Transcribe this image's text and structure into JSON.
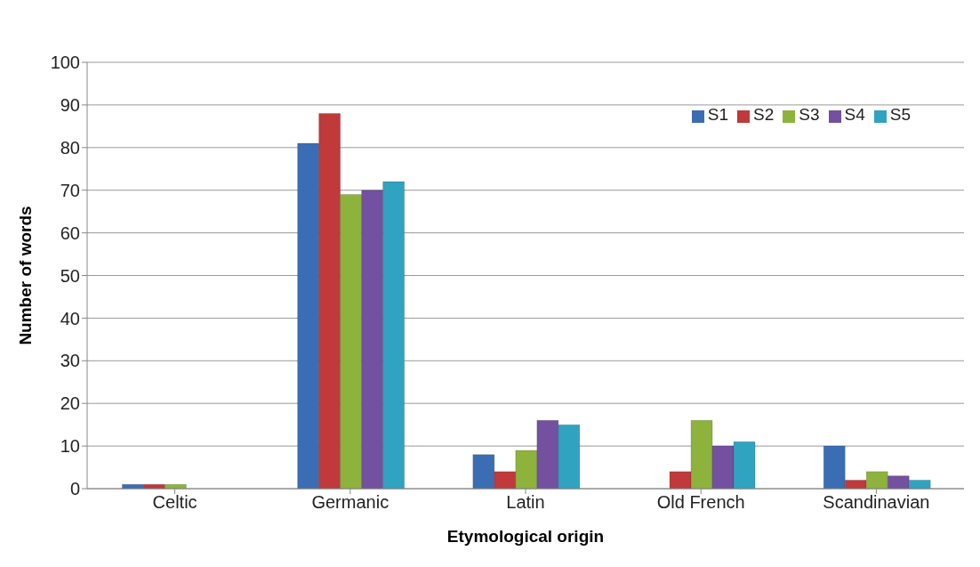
{
  "chart_data": {
    "type": "bar",
    "xlabel": "Etymological origin",
    "ylabel": "Number of words",
    "categories": [
      "Celtic",
      "Germanic",
      "Latin",
      "Old French",
      "Scandinavian"
    ],
    "series": [
      {
        "name": "S1",
        "color": "#3a6db3",
        "values": [
          1,
          81,
          8,
          0,
          10
        ]
      },
      {
        "name": "S2",
        "color": "#c0393b",
        "values": [
          1,
          88,
          4,
          4,
          2
        ]
      },
      {
        "name": "S3",
        "color": "#8db33c",
        "values": [
          1,
          69,
          9,
          16,
          4
        ]
      },
      {
        "name": "S4",
        "color": "#7350a0",
        "values": [
          0,
          70,
          16,
          10,
          3
        ]
      },
      {
        "name": "S5",
        "color": "#2fa3c0",
        "values": [
          0,
          72,
          15,
          11,
          2
        ]
      }
    ],
    "ylim": [
      0,
      100
    ],
    "yticks": [
      0,
      10,
      20,
      30,
      40,
      50,
      60,
      70,
      80,
      90,
      100
    ],
    "grid": "y",
    "legend": "top right"
  }
}
